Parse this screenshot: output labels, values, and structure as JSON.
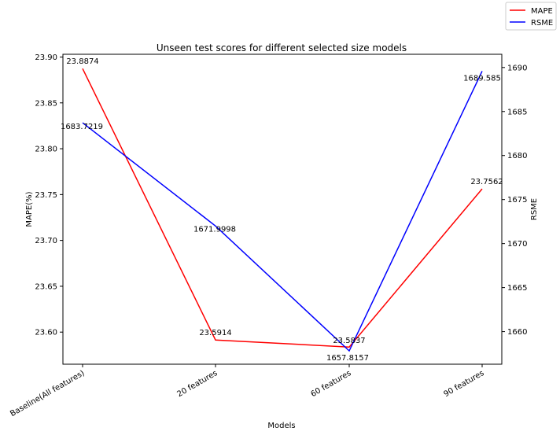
{
  "chart_data": {
    "type": "line",
    "title": "Unseen test scores for different selected size models",
    "xlabel": "Models",
    "ylabel": "MAPE(%)",
    "y2label": "RSME",
    "categories": [
      "Baseline(All features)",
      "20 features",
      "60 features",
      "90 features"
    ],
    "ylim": [
      23.565,
      23.903
    ],
    "y2lim": [
      1656.3,
      1691.5
    ],
    "yticks": [
      "23.60",
      "23.65",
      "23.70",
      "23.75",
      "23.80",
      "23.85",
      "23.90"
    ],
    "y2ticks": [
      "1660",
      "1665",
      "1670",
      "1675",
      "1680",
      "1685",
      "1690"
    ],
    "legend_position": "top-right",
    "series": [
      {
        "name": "MAPE",
        "axis": "left",
        "color": "#ff0000",
        "values": [
          23.8874,
          23.5914,
          23.5837,
          23.7562
        ],
        "labels": [
          "23.8874",
          "23.5914",
          "23.5837",
          "23.7562"
        ]
      },
      {
        "name": "RSME",
        "axis": "right",
        "color": "#0000ff",
        "values": [
          1683.7219,
          1671.9998,
          1657.8157,
          1689.585
        ],
        "labels": [
          "1683.7219",
          "1671.9998",
          "1657.8157",
          "1689.585"
        ]
      }
    ]
  }
}
